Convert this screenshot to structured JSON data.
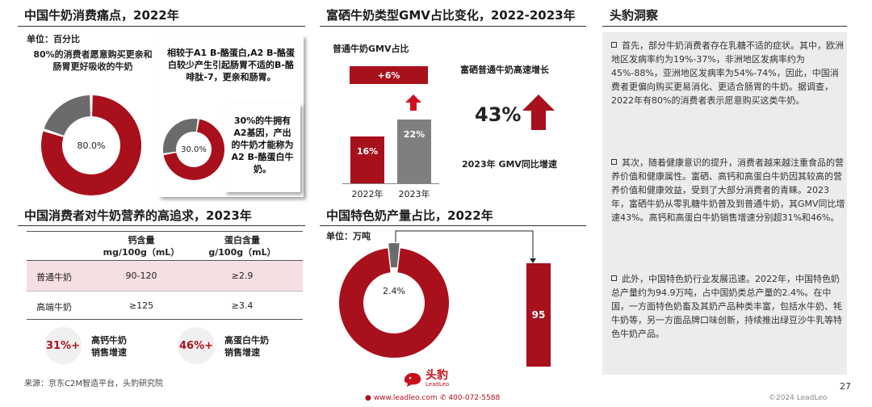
{
  "left": {
    "title": "中国牛奶消费痛点，2022年",
    "unit": "单位：百分比",
    "donut1": {
      "value": 80.0,
      "label": "80.0%",
      "caption": "80%的消费者愿意购买更亲和肠胃更好吸收的牛奶",
      "color": "#a8101c",
      "rest_color": "#6b6b6b"
    },
    "donut2": {
      "value": 30.0,
      "label": "30.0%",
      "caption": "相较于A1 B-酪蛋白,A2 B-酪蛋白较少产生引起肠胃不适的B-酪啡肽-7，更亲和肠胃。",
      "note": "30%的牛拥有A2基因，产出的牛奶才能称为A2 B-酪蛋白牛奶。",
      "color": "#a8101c",
      "rest_color": "#6b6b6b"
    }
  },
  "table": {
    "title": "中国消费者对牛奶营养的高追求，2023年",
    "headers": [
      "",
      "钙含量\nmg/100g（mL）",
      "蛋白含量\ng/100g（mL）"
    ],
    "header_c1_l1": "钙含量",
    "header_c1_l2": "mg/100g（mL）",
    "header_c2_l1": "蛋白含量",
    "header_c2_l2": "g/100g（mL）",
    "rows": [
      {
        "name": "普通牛奶",
        "calcium": "90-120",
        "protein": "≥2.9"
      },
      {
        "name": "高端牛奶",
        "calcium": "≥125",
        "protein": "≥3.4"
      }
    ],
    "stats": [
      {
        "value": "31%+",
        "label_l1": "高钙牛奶",
        "label_l2": "销售增速"
      },
      {
        "value": "46%+",
        "label_l1": "高蛋白牛奶",
        "label_l2": "销售增速"
      }
    ]
  },
  "gmv": {
    "title": "富硒牛奶类型GMV占比变化，2022-2023年",
    "subtitle": "普通牛奶GMV占比",
    "increase_label": "+6%",
    "growth_title": "富硒普通牛奶高速增长",
    "growth_value": "43%",
    "growth_caption": "2023年 GMV同比增速",
    "chart_data": {
      "type": "bar",
      "categories": [
        "2022年",
        "2023年"
      ],
      "values": [
        16,
        22
      ],
      "value_labels": [
        "16%",
        "22%"
      ],
      "colors": [
        "#a8101c",
        "#7f7f7f"
      ]
    }
  },
  "special": {
    "title": "中国特色奶产量占比，2022年",
    "unit": "单位：万吨",
    "donut_label": "2.4%",
    "donut_value": 2.4,
    "bar_value": "95",
    "colors": {
      "main": "#a8101c",
      "slice": "#6b6b6b"
    }
  },
  "insight": {
    "title": "头豹洞察",
    "bullets": [
      "首先，部分牛奶消费者存在乳糖不适的症状。其中，欧洲地区发病率约为19%-37%，非洲地区发病率约为45%-88%，亚洲地区发病率为54%-74%，因此，中国消费者更偏向购买更易消化、更适合肠胃的牛奶。据调查，2022年有80%的消费者表示愿意购买这类牛奶。",
      "其次，随着健康意识的提升，消费者越来越注重食品的营养价值和健康属性。富硒、高钙和高蛋白牛奶因其较高的营养价值和健康效益，受到了大部分消费者的青睐。2023年，富硒牛奶从零乳糖牛奶普及到普通牛奶，其GMV同比增速43%。高钙和高蛋白牛奶销售增速分别超31%和46%。",
      "此外，中国特色奶行业发展迅速。2022年，中国特色奶总产量约为94.9万吨，占中国奶类总产量的2.4%。在中国，一方面特色奶畜及其奶产品种类丰富，包括水牛奶、牦牛奶等，另一方面品牌口味创新，持续推出绿豆沙牛乳等特色牛奶产品。"
    ]
  },
  "footer": {
    "source": "来源：京东C2M智造平台，头豹研究院",
    "brand": "头豹",
    "brand_sub": "LeadLeo",
    "website": "www.leadleo.com",
    "phone": "400-072-5588",
    "copyright": "©2024 LeadLeo",
    "page": "27"
  }
}
